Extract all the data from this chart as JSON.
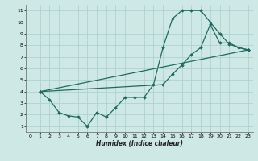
{
  "xlabel": "Humidex (Indice chaleur)",
  "background_color": "#cde8e5",
  "grid_color": "#aacfcc",
  "line_color": "#1e6b5e",
  "xlim": [
    -0.5,
    23.5
  ],
  "ylim": [
    0.5,
    11.5
  ],
  "xticks": [
    0,
    1,
    2,
    3,
    4,
    5,
    6,
    7,
    8,
    9,
    10,
    11,
    12,
    13,
    14,
    15,
    16,
    17,
    18,
    19,
    20,
    21,
    22,
    23
  ],
  "yticks": [
    1,
    2,
    3,
    4,
    5,
    6,
    7,
    8,
    9,
    10,
    11
  ],
  "series": [
    {
      "x": [
        1,
        2,
        3,
        4,
        5,
        6,
        7,
        8,
        9,
        10,
        11,
        12,
        13,
        14,
        15,
        16,
        17,
        18,
        19,
        20,
        21,
        22,
        23
      ],
      "y": [
        4,
        3.3,
        2.2,
        1.9,
        1.8,
        1.0,
        2.2,
        1.8,
        2.6,
        3.5,
        3.5,
        3.5,
        4.6,
        7.8,
        10.3,
        11.0,
        11.0,
        11.0,
        10.0,
        9.0,
        8.1,
        7.8,
        7.6
      ]
    },
    {
      "x": [
        1,
        14,
        15,
        16,
        17,
        18,
        19,
        20,
        21,
        22,
        23
      ],
      "y": [
        4,
        4.6,
        5.5,
        6.3,
        7.2,
        7.8,
        9.8,
        8.2,
        8.2,
        7.8,
        7.6
      ]
    },
    {
      "x": [
        1,
        23
      ],
      "y": [
        4,
        7.6
      ]
    }
  ]
}
